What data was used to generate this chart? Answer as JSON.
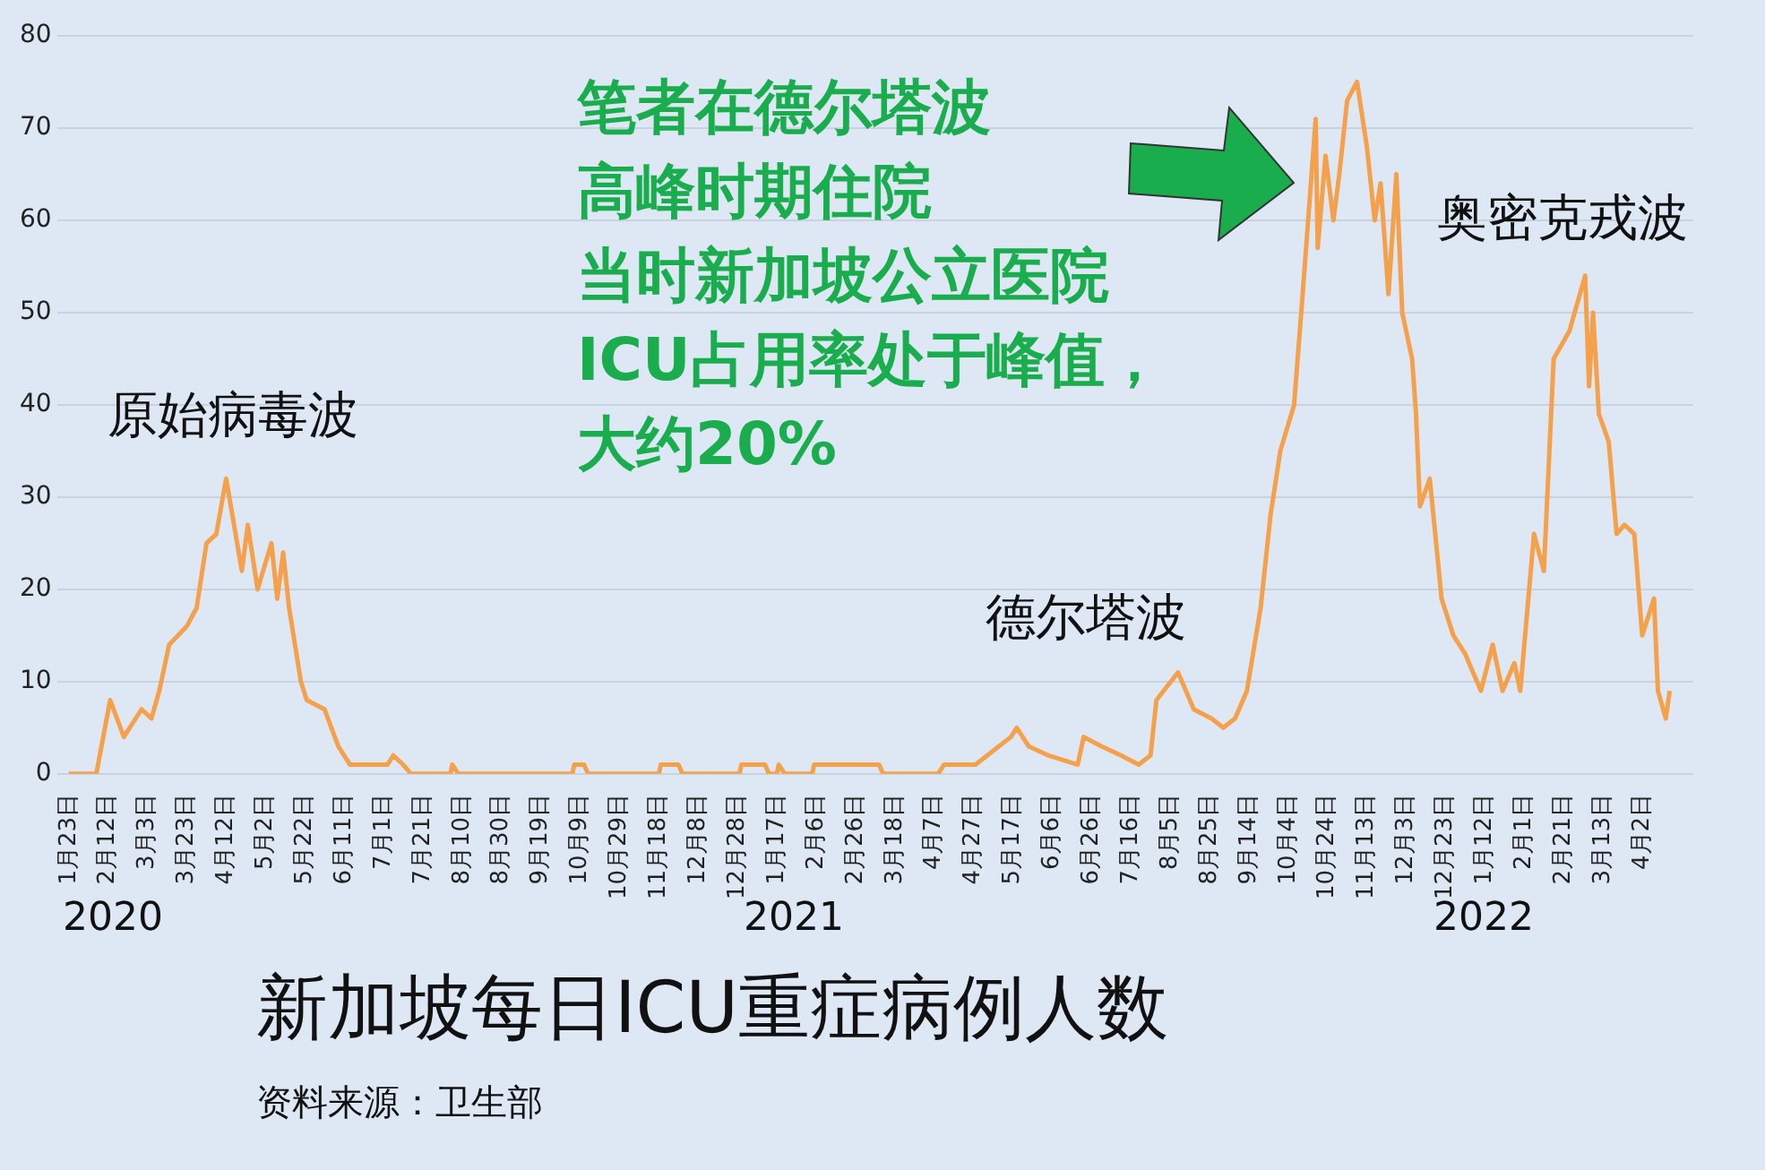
{
  "chart_data": {
    "type": "line",
    "title": "新加坡每日ICU重症病例人数",
    "annotations": [
      "原始病毒波",
      "德尔塔波",
      "奥密克戎波",
      "笔者在德尔塔波",
      "高峰时期住院",
      "当时新加坡公立医院",
      "ICU占用率处于峰值，",
      "大约20%",
      "2020",
      "2021",
      "2022",
      "资料来源：卫生部"
    ],
    "x": [
      "2020-01-23",
      "2020-02-06",
      "2020-02-13",
      "2020-02-20",
      "2020-02-29",
      "2020-03-05",
      "2020-03-09",
      "2020-03-14",
      "2020-03-23",
      "2020-03-28",
      "2020-04-02",
      "2020-04-07",
      "2020-04-12",
      "2020-04-20",
      "2020-04-23",
      "2020-04-28",
      "2020-05-05",
      "2020-05-08",
      "2020-05-11",
      "2020-05-14",
      "2020-05-20",
      "2020-05-23",
      "2020-06-01",
      "2020-06-08",
      "2020-06-14",
      "2020-07-03",
      "2020-07-06",
      "2020-07-11",
      "2020-07-15",
      "2020-08-04",
      "2020-08-05",
      "2020-08-08",
      "2020-10-05",
      "2020-10-06",
      "2020-10-11",
      "2020-10-13",
      "2020-11-18",
      "2020-11-19",
      "2020-11-28",
      "2020-11-30",
      "2020-12-29",
      "2020-12-30",
      "2021-01-11",
      "2021-01-13",
      "2021-01-17",
      "2021-01-18",
      "2021-01-21",
      "2021-02-04",
      "2021-02-05",
      "2021-03-10",
      "2021-03-12",
      "2021-04-09",
      "2021-04-12",
      "2021-04-28",
      "2021-05-04",
      "2021-05-16",
      "2021-05-19",
      "2021-05-25",
      "2021-06-04",
      "2021-06-19",
      "2021-06-22",
      "2021-07-01",
      "2021-07-11",
      "2021-07-20",
      "2021-07-26",
      "2021-07-29",
      "2021-08-09",
      "2021-08-17",
      "2021-08-26",
      "2021-09-01",
      "2021-09-07",
      "2021-09-13",
      "2021-09-20",
      "2021-09-25",
      "2021-09-30",
      "2021-10-07",
      "2021-10-11",
      "2021-10-18",
      "2021-10-19",
      "2021-10-23",
      "2021-10-27",
      "2021-10-30",
      "2021-11-03",
      "2021-11-08",
      "2021-11-13",
      "2021-11-17",
      "2021-11-20",
      "2021-11-24",
      "2021-11-28",
      "2021-12-01",
      "2021-12-06",
      "2021-12-08",
      "2021-12-10",
      "2021-12-15",
      "2021-12-21",
      "2021-12-27",
      "2022-01-02",
      "2022-01-10",
      "2022-01-16",
      "2022-01-21",
      "2022-01-27",
      "2022-01-30",
      "2022-02-06",
      "2022-02-11",
      "2022-02-16",
      "2022-02-24",
      "2022-03-04",
      "2022-03-06",
      "2022-03-08",
      "2022-03-11",
      "2022-03-16",
      "2022-03-20",
      "2022-03-24",
      "2022-03-29",
      "2022-04-02",
      "2022-04-08",
      "2022-04-10",
      "2022-04-14",
      "2022-04-16"
    ],
    "series": [
      {
        "color": "#f5a04a",
        "values": [
          0,
          0,
          8,
          4,
          7,
          6,
          9,
          14,
          16,
          18,
          25,
          26,
          32,
          22,
          27,
          20,
          25,
          19,
          24,
          18,
          10,
          8,
          7,
          3,
          1,
          1,
          2,
          1,
          0,
          0,
          1,
          0,
          0,
          1,
          1,
          0,
          0,
          1,
          1,
          0,
          0,
          1,
          1,
          0,
          0,
          1,
          0,
          0,
          1,
          1,
          0,
          0,
          1,
          1,
          2,
          4,
          5,
          3,
          2,
          1,
          4,
          3,
          2,
          1,
          2,
          8,
          11,
          7,
          6,
          5,
          6,
          9,
          18,
          28,
          35,
          40,
          51,
          71,
          57,
          67,
          60,
          65,
          73,
          75,
          68,
          60,
          64,
          52,
          65,
          50,
          45,
          39,
          29,
          32,
          19,
          15,
          13,
          9,
          14,
          9,
          12,
          9,
          26,
          22,
          45,
          48,
          54,
          42,
          50,
          39,
          36,
          26,
          27,
          26,
          15,
          19,
          9,
          6,
          9
        ]
      }
    ],
    "xlim": [
      "2020-01-17",
      "2022-04-28"
    ],
    "xticks": [
      {
        "value": "2020-01-23",
        "label": "1月23日"
      },
      {
        "value": "2020-02-12",
        "label": "2月12日"
      },
      {
        "value": "2020-03-03",
        "label": "3月3日"
      },
      {
        "value": "2020-03-23",
        "label": "3月23日"
      },
      {
        "value": "2020-04-12",
        "label": "4月12日"
      },
      {
        "value": "2020-05-02",
        "label": "5月2日"
      },
      {
        "value": "2020-05-22",
        "label": "5月22日"
      },
      {
        "value": "2020-06-11",
        "label": "6月11日"
      },
      {
        "value": "2020-07-01",
        "label": "7月1日"
      },
      {
        "value": "2020-07-21",
        "label": "7月21日"
      },
      {
        "value": "2020-08-10",
        "label": "8月10日"
      },
      {
        "value": "2020-08-30",
        "label": "8月30日"
      },
      {
        "value": "2020-09-19",
        "label": "9月19日"
      },
      {
        "value": "2020-10-09",
        "label": "10月9日"
      },
      {
        "value": "2020-10-29",
        "label": "10月29日"
      },
      {
        "value": "2020-11-18",
        "label": "11月18日"
      },
      {
        "value": "2020-12-08",
        "label": "12月8日"
      },
      {
        "value": "2020-12-28",
        "label": "12月28日"
      },
      {
        "value": "2021-01-17",
        "label": "1月17日"
      },
      {
        "value": "2021-02-06",
        "label": "2月6日"
      },
      {
        "value": "2021-02-26",
        "label": "2月26日"
      },
      {
        "value": "2021-03-18",
        "label": "3月18日"
      },
      {
        "value": "2021-04-07",
        "label": "4月7日"
      },
      {
        "value": "2021-04-27",
        "label": "4月27日"
      },
      {
        "value": "2021-05-17",
        "label": "5月17日"
      },
      {
        "value": "2021-06-06",
        "label": "6月6日"
      },
      {
        "value": "2021-06-26",
        "label": "6月26日"
      },
      {
        "value": "2021-07-16",
        "label": "7月16日"
      },
      {
        "value": "2021-08-05",
        "label": "8月5日"
      },
      {
        "value": "2021-08-25",
        "label": "8月25日"
      },
      {
        "value": "2021-09-14",
        "label": "9月14日"
      },
      {
        "value": "2021-10-04",
        "label": "10月4日"
      },
      {
        "value": "2021-10-24",
        "label": "10月24日"
      },
      {
        "value": "2021-11-13",
        "label": "11月13日"
      },
      {
        "value": "2021-12-03",
        "label": "12月3日"
      },
      {
        "value": "2021-12-23",
        "label": "12月23日"
      },
      {
        "value": "2022-01-12",
        "label": "1月12日"
      },
      {
        "value": "2022-02-01",
        "label": "2月1日"
      },
      {
        "value": "2022-02-21",
        "label": "2月21日"
      },
      {
        "value": "2022-03-13",
        "label": "3月13日"
      },
      {
        "value": "2022-04-02",
        "label": "4月2日"
      }
    ],
    "ylim": [
      0,
      80
    ],
    "yticks": [
      0,
      10,
      20,
      30,
      40,
      50,
      60,
      70,
      80
    ],
    "grid": "y",
    "legend": false,
    "marker": "none",
    "line_style": "solid"
  }
}
